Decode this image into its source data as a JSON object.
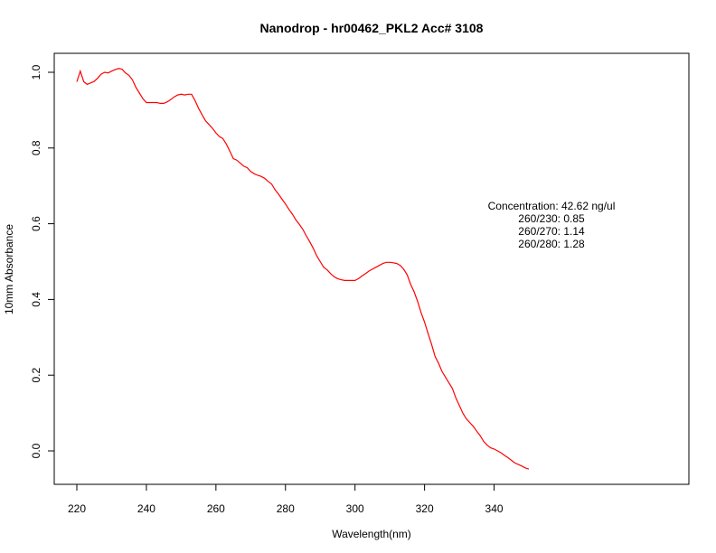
{
  "chart_data": {
    "type": "line",
    "title": "Nanodrop - hr00462_PKL2 Acc# 3108",
    "xlabel": "Wavelength(nm)",
    "ylabel": "10mm Absorbance",
    "xlim": [
      220,
      350
    ],
    "ylim": [
      0.0,
      1.0
    ],
    "x_ticks": [
      220,
      240,
      260,
      280,
      300,
      320,
      340
    ],
    "x_tick_labels": [
      "220",
      "240",
      "260",
      "280",
      "300",
      "320",
      "340"
    ],
    "y_ticks": [
      0.0,
      0.2,
      0.4,
      0.6,
      0.8,
      1.0
    ],
    "y_tick_labels": [
      "0.0",
      "0.2",
      "0.4",
      "0.6",
      "0.8",
      "1.0"
    ],
    "grid": false,
    "line_color": "#ff0000",
    "series": [
      {
        "x": [
          220,
          221,
          222,
          223,
          224,
          225,
          226,
          227,
          228,
          229,
          230,
          231,
          232,
          233,
          234,
          235,
          236,
          237,
          238,
          239,
          240,
          241,
          242,
          243,
          244,
          245,
          246,
          247,
          248,
          249,
          250,
          251,
          252,
          253,
          254,
          255,
          256,
          257,
          258,
          259,
          260,
          261,
          262,
          263,
          264,
          265,
          266,
          267,
          268,
          269,
          270,
          271,
          272,
          273,
          274,
          275,
          276,
          277,
          278,
          279,
          280,
          281,
          282,
          283,
          284,
          285,
          286,
          287,
          288,
          289,
          290,
          291,
          292,
          293,
          294,
          295,
          296,
          297,
          298,
          299,
          300,
          301,
          302,
          303,
          304,
          305,
          306,
          307,
          308,
          309,
          310,
          311,
          312,
          313,
          314,
          315,
          316,
          317,
          318,
          319,
          320,
          321,
          322,
          323,
          324,
          325,
          326,
          327,
          328,
          329,
          330,
          331,
          332,
          333,
          334,
          335,
          336,
          337,
          338,
          339,
          340,
          341,
          342,
          343,
          344,
          345,
          346,
          347,
          348,
          349,
          350
        ],
        "values": [
          0.975,
          1.003,
          0.975,
          0.968,
          0.972,
          0.976,
          0.985,
          0.995,
          1.0,
          0.998,
          1.003,
          1.007,
          1.01,
          1.008,
          0.998,
          0.992,
          0.98,
          0.96,
          0.945,
          0.93,
          0.92,
          0.92,
          0.92,
          0.92,
          0.918,
          0.918,
          0.922,
          0.928,
          0.935,
          0.94,
          0.942,
          0.94,
          0.942,
          0.942,
          0.925,
          0.905,
          0.888,
          0.872,
          0.862,
          0.852,
          0.84,
          0.83,
          0.825,
          0.81,
          0.792,
          0.772,
          0.768,
          0.76,
          0.752,
          0.748,
          0.738,
          0.732,
          0.728,
          0.725,
          0.72,
          0.712,
          0.705,
          0.69,
          0.678,
          0.665,
          0.652,
          0.638,
          0.625,
          0.61,
          0.598,
          0.585,
          0.568,
          0.552,
          0.535,
          0.515,
          0.5,
          0.485,
          0.478,
          0.468,
          0.46,
          0.455,
          0.452,
          0.45,
          0.45,
          0.45,
          0.45,
          0.455,
          0.462,
          0.468,
          0.475,
          0.48,
          0.485,
          0.49,
          0.495,
          0.498,
          0.498,
          0.497,
          0.495,
          0.49,
          0.48,
          0.465,
          0.44,
          0.42,
          0.395,
          0.365,
          0.34,
          0.31,
          0.282,
          0.25,
          0.232,
          0.21,
          0.195,
          0.18,
          0.165,
          0.14,
          0.12,
          0.1,
          0.085,
          0.075,
          0.065,
          0.052,
          0.04,
          0.025,
          0.015,
          0.008,
          0.005,
          0.0,
          -0.005,
          -0.012,
          -0.018,
          -0.025,
          -0.032,
          -0.036,
          -0.04,
          -0.045,
          -0.048
        ]
      }
    ],
    "annotations": [
      "Concentration: 42.62 ng/ul",
      "260/230: 0.85",
      "260/270: 1.14",
      "260/280: 1.28"
    ]
  }
}
